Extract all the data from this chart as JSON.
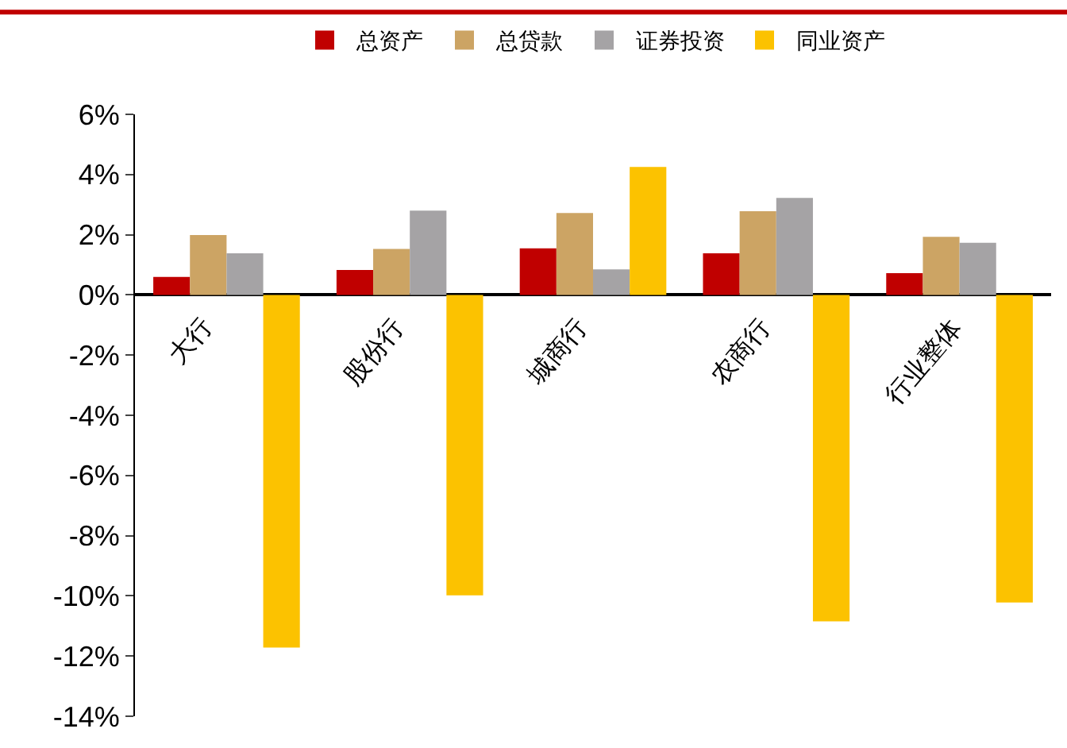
{
  "chart_data": {
    "type": "bar",
    "categories": [
      "大行",
      "股份行",
      "城商行",
      "农商行",
      "行业整体"
    ],
    "series": [
      {
        "name": "总资产",
        "color": "#c00000",
        "values": [
          0.6,
          0.83,
          1.55,
          1.38,
          0.72
        ]
      },
      {
        "name": "总贷款",
        "color": "#cca464",
        "values": [
          1.99,
          1.53,
          2.72,
          2.78,
          1.93
        ]
      },
      {
        "name": "证券投资",
        "color": "#a5a3a5",
        "values": [
          1.38,
          2.8,
          0.85,
          3.22,
          1.73
        ]
      },
      {
        "name": "同业资产",
        "color": "#fcc200",
        "values": [
          -11.72,
          -9.98,
          4.25,
          -10.85,
          -10.22
        ]
      }
    ],
    "ylim": [
      -14,
      6
    ],
    "yticks": [
      {
        "value": -14,
        "label": "-14%"
      },
      {
        "value": -12,
        "label": "-12%"
      },
      {
        "value": -10,
        "label": "-10%"
      },
      {
        "value": -8,
        "label": "-8%"
      },
      {
        "value": -6,
        "label": "-6%"
      },
      {
        "value": -4,
        "label": "-4%"
      },
      {
        "value": -2,
        "label": "-2%"
      },
      {
        "value": 0,
        "label": "0%"
      },
      {
        "value": 2,
        "label": "2%"
      },
      {
        "value": 4,
        "label": "4%"
      },
      {
        "value": 6,
        "label": "6%"
      }
    ],
    "legend": "top"
  }
}
